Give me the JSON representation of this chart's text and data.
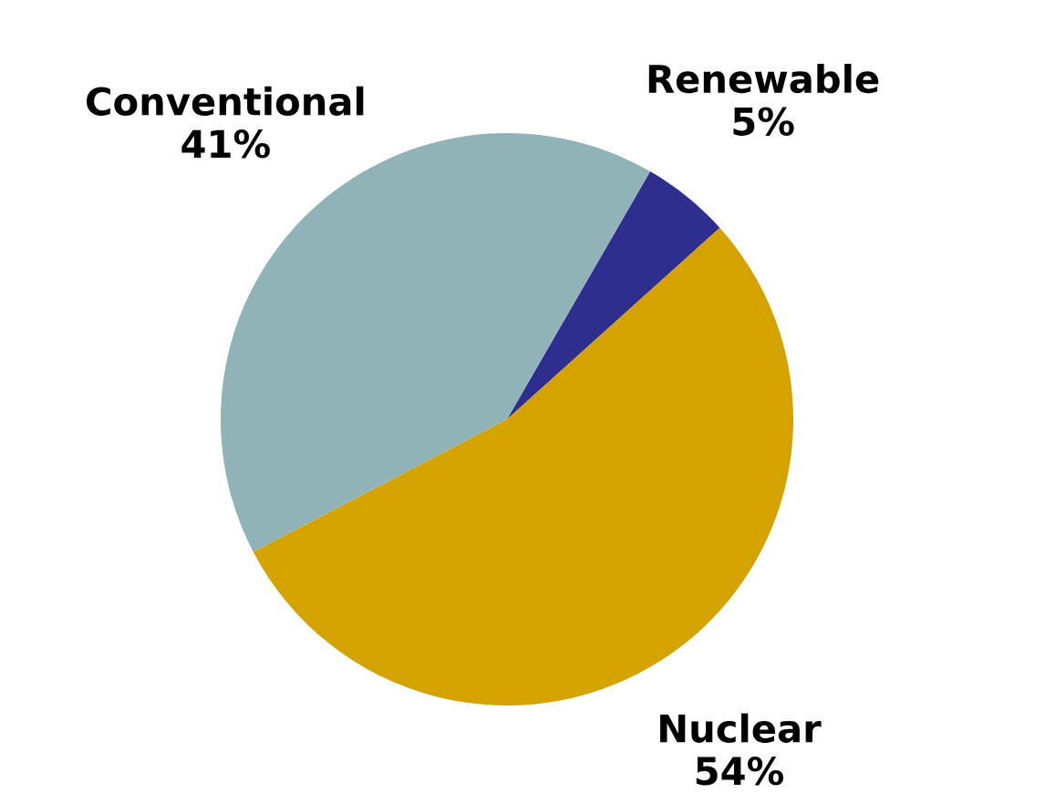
{
  "chart_data": {
    "type": "pie",
    "categories": [
      "Renewable",
      "Nuclear",
      "Conventional"
    ],
    "values": [
      5,
      54,
      41
    ],
    "value_labels": [
      "5%",
      "54%",
      "41%"
    ],
    "colors": [
      "#2e2e8e",
      "#d4a300",
      "#8fb3b6"
    ]
  }
}
